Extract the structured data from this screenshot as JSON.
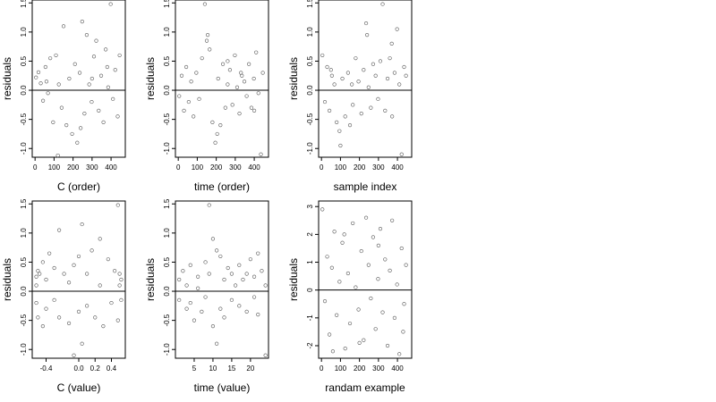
{
  "chart_data": [
    {
      "type": "scatter",
      "xlabel": "C (order)",
      "ylabel": "residuals",
      "xlim": [
        -15,
        475
      ],
      "ylim": [
        -1.15,
        1.55
      ],
      "xticks": [
        0,
        100,
        200,
        300,
        400
      ],
      "xtick_labels": [
        "0",
        "100",
        "200",
        "300",
        "400"
      ],
      "yticks": [
        -1.0,
        -0.5,
        0.0,
        0.5,
        1.0,
        1.5
      ],
      "ytick_labels": [
        "-1.0",
        "-0.5",
        "0.0",
        "0.5",
        "1.0",
        "1.5"
      ],
      "hline": 0,
      "points": [
        [
          5,
          0.22
        ],
        [
          18,
          0.31
        ],
        [
          30,
          0.12
        ],
        [
          42,
          -0.18
        ],
        [
          55,
          0.4
        ],
        [
          68,
          -0.05
        ],
        [
          80,
          0.55
        ],
        [
          95,
          -0.55
        ],
        [
          110,
          0.6
        ],
        [
          125,
          0.1
        ],
        [
          140,
          -0.3
        ],
        [
          150,
          1.1
        ],
        [
          165,
          -0.6
        ],
        [
          180,
          0.2
        ],
        [
          195,
          -0.75
        ],
        [
          210,
          0.45
        ],
        [
          222,
          -0.9
        ],
        [
          235,
          0.3
        ],
        [
          248,
          1.18
        ],
        [
          260,
          -0.4
        ],
        [
          272,
          0.95
        ],
        [
          285,
          0.1
        ],
        [
          298,
          -0.2
        ],
        [
          310,
          0.58
        ],
        [
          322,
          0.85
        ],
        [
          335,
          -0.35
        ],
        [
          348,
          0.25
        ],
        [
          360,
          -0.55
        ],
        [
          372,
          0.7
        ],
        [
          385,
          0.05
        ],
        [
          398,
          1.48
        ],
        [
          410,
          -0.15
        ],
        [
          422,
          0.35
        ],
        [
          435,
          -0.45
        ],
        [
          445,
          0.6
        ],
        [
          120,
          -1.12
        ],
        [
          240,
          -0.65
        ],
        [
          300,
          0.2
        ],
        [
          60,
          0.15
        ],
        [
          380,
          0.4
        ]
      ]
    },
    {
      "type": "scatter",
      "xlabel": "time (order)",
      "ylabel": "residuals",
      "xlim": [
        -15,
        475
      ],
      "ylim": [
        -1.15,
        1.55
      ],
      "xticks": [
        0,
        100,
        200,
        300,
        400
      ],
      "xtick_labels": [
        "0",
        "100",
        "200",
        "300",
        "400"
      ],
      "yticks": [
        -1.0,
        -0.5,
        0.0,
        0.5,
        1.0,
        1.5
      ],
      "ytick_labels": [
        "-1.0",
        "-0.5",
        "0.0",
        "0.5",
        "1.0",
        "1.5"
      ],
      "hline": 0,
      "points": [
        [
          5,
          -0.1
        ],
        [
          18,
          0.25
        ],
        [
          30,
          -0.35
        ],
        [
          42,
          0.4
        ],
        [
          55,
          -0.2
        ],
        [
          68,
          0.15
        ],
        [
          80,
          -0.45
        ],
        [
          95,
          0.3
        ],
        [
          110,
          -0.15
        ],
        [
          125,
          0.55
        ],
        [
          140,
          1.48
        ],
        [
          150,
          0.85
        ],
        [
          165,
          0.7
        ],
        [
          180,
          -0.55
        ],
        [
          195,
          -0.9
        ],
        [
          210,
          0.2
        ],
        [
          222,
          -0.6
        ],
        [
          235,
          0.45
        ],
        [
          248,
          -0.3
        ],
        [
          260,
          0.1
        ],
        [
          272,
          0.35
        ],
        [
          285,
          -0.25
        ],
        [
          298,
          0.6
        ],
        [
          310,
          0.05
        ],
        [
          322,
          -0.4
        ],
        [
          335,
          0.25
        ],
        [
          348,
          0.15
        ],
        [
          360,
          -0.1
        ],
        [
          372,
          0.45
        ],
        [
          385,
          -0.3
        ],
        [
          398,
          0.2
        ],
        [
          410,
          0.65
        ],
        [
          422,
          -0.05
        ],
        [
          435,
          -1.1
        ],
        [
          445,
          0.3
        ],
        [
          155,
          0.95
        ],
        [
          205,
          -0.75
        ],
        [
          260,
          0.5
        ],
        [
          330,
          0.3
        ],
        [
          400,
          -0.35
        ]
      ]
    },
    {
      "type": "scatter",
      "xlabel": "sample index",
      "ylabel": "residuals",
      "xlim": [
        -15,
        475
      ],
      "ylim": [
        -1.15,
        1.55
      ],
      "xticks": [
        0,
        100,
        200,
        300,
        400
      ],
      "xtick_labels": [
        "0",
        "100",
        "200",
        "300",
        "400"
      ],
      "yticks": [
        -1.0,
        -0.5,
        0.0,
        0.5,
        1.0,
        1.5
      ],
      "ytick_labels": [
        "-1.0",
        "-0.5",
        "0.0",
        "0.5",
        "1.0",
        "1.5"
      ],
      "hline": 0,
      "points": [
        [
          5,
          0.6
        ],
        [
          18,
          -0.2
        ],
        [
          30,
          0.4
        ],
        [
          42,
          -0.35
        ],
        [
          55,
          0.25
        ],
        [
          68,
          0.1
        ],
        [
          80,
          -0.55
        ],
        [
          95,
          -0.7
        ],
        [
          110,
          0.2
        ],
        [
          125,
          -0.45
        ],
        [
          140,
          0.3
        ],
        [
          150,
          -0.6
        ],
        [
          165,
          -0.25
        ],
        [
          180,
          0.55
        ],
        [
          195,
          0.15
        ],
        [
          210,
          -0.4
        ],
        [
          222,
          0.35
        ],
        [
          235,
          1.15
        ],
        [
          248,
          0.05
        ],
        [
          260,
          -0.3
        ],
        [
          272,
          0.45
        ],
        [
          285,
          0.25
        ],
        [
          298,
          -0.15
        ],
        [
          310,
          0.5
        ],
        [
          322,
          1.48
        ],
        [
          335,
          -0.35
        ],
        [
          348,
          0.2
        ],
        [
          360,
          0.55
        ],
        [
          372,
          -0.45
        ],
        [
          385,
          0.3
        ],
        [
          398,
          1.05
        ],
        [
          410,
          0.1
        ],
        [
          422,
          -1.1
        ],
        [
          435,
          0.4
        ],
        [
          445,
          0.25
        ],
        [
          100,
          -0.95
        ],
        [
          240,
          0.95
        ],
        [
          370,
          0.8
        ],
        [
          50,
          0.35
        ],
        [
          160,
          0.1
        ]
      ]
    },
    {
      "type": "scatter",
      "xlabel": "C (value)",
      "ylabel": "residuals",
      "xlim": [
        -0.57,
        0.57
      ],
      "ylim": [
        -1.15,
        1.55
      ],
      "xticks": [
        -0.4,
        0.0,
        0.2,
        0.4
      ],
      "xtick_labels": [
        "-0.4",
        "0.0",
        "0.2",
        "0.4"
      ],
      "yticks": [
        -1.0,
        -0.5,
        0.0,
        0.5,
        1.0,
        1.5
      ],
      "ytick_labels": [
        "-1.0",
        "-0.5",
        "0.0",
        "0.5",
        "1.0",
        "1.5"
      ],
      "hline": 0,
      "points": [
        [
          -0.52,
          0.25
        ],
        [
          -0.52,
          0.1
        ],
        [
          -0.52,
          -0.2
        ],
        [
          -0.5,
          0.35
        ],
        [
          -0.5,
          -0.45
        ],
        [
          -0.48,
          0.3
        ],
        [
          -0.44,
          -0.6
        ],
        [
          -0.44,
          0.5
        ],
        [
          -0.4,
          -0.3
        ],
        [
          -0.4,
          0.2
        ],
        [
          -0.36,
          0.65
        ],
        [
          -0.3,
          -0.15
        ],
        [
          -0.3,
          0.4
        ],
        [
          -0.24,
          1.05
        ],
        [
          -0.24,
          -0.45
        ],
        [
          -0.18,
          0.3
        ],
        [
          -0.12,
          -0.55
        ],
        [
          -0.12,
          0.15
        ],
        [
          -0.06,
          0.45
        ],
        [
          -0.06,
          -1.1
        ],
        [
          0.0,
          0.6
        ],
        [
          0.0,
          -0.35
        ],
        [
          0.04,
          1.15
        ],
        [
          0.04,
          -0.9
        ],
        [
          0.1,
          0.3
        ],
        [
          0.1,
          -0.25
        ],
        [
          0.16,
          0.7
        ],
        [
          0.2,
          -0.45
        ],
        [
          0.26,
          0.9
        ],
        [
          0.26,
          0.1
        ],
        [
          0.3,
          -0.6
        ],
        [
          0.36,
          0.55
        ],
        [
          0.4,
          -0.2
        ],
        [
          0.44,
          0.35
        ],
        [
          0.48,
          1.48
        ],
        [
          0.48,
          -0.5
        ],
        [
          0.5,
          0.1
        ],
        [
          0.5,
          0.3
        ],
        [
          0.52,
          -0.15
        ],
        [
          0.52,
          0.2
        ]
      ]
    },
    {
      "type": "scatter",
      "xlabel": "time (value)",
      "ylabel": "residuals",
      "xlim": [
        0.0,
        24.8
      ],
      "ylim": [
        -1.15,
        1.55
      ],
      "xticks": [
        5,
        10,
        15,
        20
      ],
      "xtick_labels": [
        "5",
        "10",
        "15",
        "20"
      ],
      "yticks": [
        -1.0,
        -0.5,
        0.0,
        0.5,
        1.0,
        1.5
      ],
      "ytick_labels": [
        "-1.0",
        "-0.5",
        "0.0",
        "0.5",
        "1.0",
        "1.5"
      ],
      "hline": 0,
      "points": [
        [
          1,
          0.2
        ],
        [
          1,
          -0.15
        ],
        [
          2,
          0.35
        ],
        [
          3,
          -0.3
        ],
        [
          3,
          0.1
        ],
        [
          4,
          0.45
        ],
        [
          4,
          -0.2
        ],
        [
          5,
          -0.5
        ],
        [
          6,
          0.25
        ],
        [
          6,
          0.05
        ],
        [
          7,
          -0.35
        ],
        [
          8,
          0.5
        ],
        [
          8,
          -0.1
        ],
        [
          9,
          1.48
        ],
        [
          9,
          0.3
        ],
        [
          10,
          0.9
        ],
        [
          10,
          -0.6
        ],
        [
          11,
          0.7
        ],
        [
          11,
          -0.9
        ],
        [
          12,
          0.6
        ],
        [
          12,
          -0.3
        ],
        [
          13,
          0.2
        ],
        [
          13,
          -0.45
        ],
        [
          14,
          0.4
        ],
        [
          15,
          -0.15
        ],
        [
          15,
          0.3
        ],
        [
          16,
          0.1
        ],
        [
          17,
          -0.25
        ],
        [
          17,
          0.45
        ],
        [
          18,
          0.2
        ],
        [
          19,
          -0.35
        ],
        [
          19,
          0.3
        ],
        [
          20,
          0.55
        ],
        [
          21,
          -0.1
        ],
        [
          21,
          0.25
        ],
        [
          22,
          0.65
        ],
        [
          22,
          -0.4
        ],
        [
          23,
          0.35
        ],
        [
          24,
          -1.1
        ],
        [
          24,
          0.1
        ]
      ]
    },
    {
      "type": "scatter",
      "xlabel": "randam example",
      "ylabel": "residuals",
      "xlim": [
        -15,
        475
      ],
      "ylim": [
        -2.45,
        3.2
      ],
      "xticks": [
        0,
        100,
        200,
        300,
        400
      ],
      "xtick_labels": [
        "0",
        "100",
        "200",
        "300",
        "400"
      ],
      "yticks": [
        -2,
        -1,
        0,
        1,
        2,
        3
      ],
      "ytick_labels": [
        "-2",
        "-1",
        "0",
        "1",
        "2",
        "3"
      ],
      "hline": 0,
      "points": [
        [
          5,
          2.9
        ],
        [
          18,
          -0.4
        ],
        [
          30,
          1.2
        ],
        [
          42,
          -1.6
        ],
        [
          55,
          0.8
        ],
        [
          68,
          2.1
        ],
        [
          80,
          -0.9
        ],
        [
          95,
          0.3
        ],
        [
          110,
          1.7
        ],
        [
          125,
          -2.1
        ],
        [
          140,
          0.6
        ],
        [
          150,
          -1.2
        ],
        [
          165,
          2.4
        ],
        [
          180,
          0.1
        ],
        [
          195,
          -0.7
        ],
        [
          210,
          1.4
        ],
        [
          222,
          -1.8
        ],
        [
          235,
          2.6
        ],
        [
          248,
          0.9
        ],
        [
          260,
          -0.3
        ],
        [
          272,
          1.9
        ],
        [
          285,
          -1.4
        ],
        [
          298,
          0.4
        ],
        [
          310,
          2.2
        ],
        [
          322,
          -0.8
        ],
        [
          335,
          1.1
        ],
        [
          348,
          -2.0
        ],
        [
          360,
          0.7
        ],
        [
          372,
          2.5
        ],
        [
          385,
          -1.0
        ],
        [
          398,
          0.2
        ],
        [
          410,
          -2.3
        ],
        [
          422,
          1.5
        ],
        [
          435,
          -0.5
        ],
        [
          445,
          0.9
        ],
        [
          60,
          -2.2
        ],
        [
          200,
          -1.9
        ],
        [
          300,
          1.6
        ],
        [
          120,
          2.0
        ],
        [
          430,
          -1.5
        ]
      ]
    }
  ]
}
